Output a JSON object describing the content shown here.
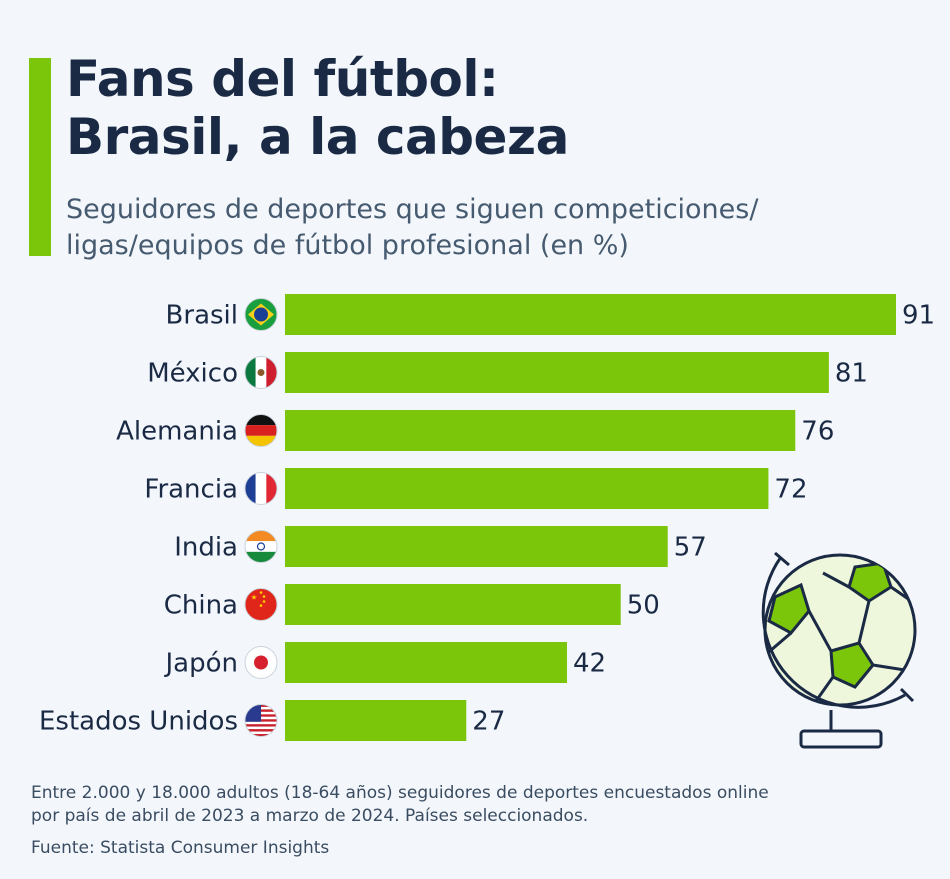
{
  "title": {
    "line1": "Fans del fútbol:",
    "line2": "Brasil, a la cabeza"
  },
  "subtitle": {
    "line1": "Seguidores de deportes que siguen competiciones/",
    "line2": "ligas/equipos de fútbol profesional (en %)"
  },
  "chart_data": {
    "type": "bar",
    "orientation": "horizontal",
    "title": "Fans del fútbol: Brasil, a la cabeza",
    "subtitle": "Seguidores de deportes que siguen competiciones/ligas/equipos de fútbol profesional (en %)",
    "categories": [
      "Brasil",
      "México",
      "Alemania",
      "Francia",
      "India",
      "China",
      "Japón",
      "Estados Unidos"
    ],
    "flags": [
      "brazil",
      "mexico",
      "germany",
      "france",
      "india",
      "china",
      "japan",
      "usa"
    ],
    "values": [
      91,
      81,
      76,
      72,
      57,
      50,
      42,
      27
    ],
    "xlim": [
      0,
      91
    ],
    "unit": "%",
    "bar_color": "#7bc50a",
    "grid": false,
    "data_labels": true
  },
  "colors": {
    "accent": "#7bc50a",
    "title": "#1b2a44",
    "text": "#3a4c61",
    "background": "#f3f7fb"
  },
  "footnote": {
    "line1": "Entre 2.000 y 18.000 adultos (18-64 años) seguidores de deportes encuestados online",
    "line2": "por país de abril de 2023 a marzo de 2024. Países seleccionados."
  },
  "source": "Fuente: Statista Consumer Insights",
  "illustration": "soccer-ball-globe-icon"
}
